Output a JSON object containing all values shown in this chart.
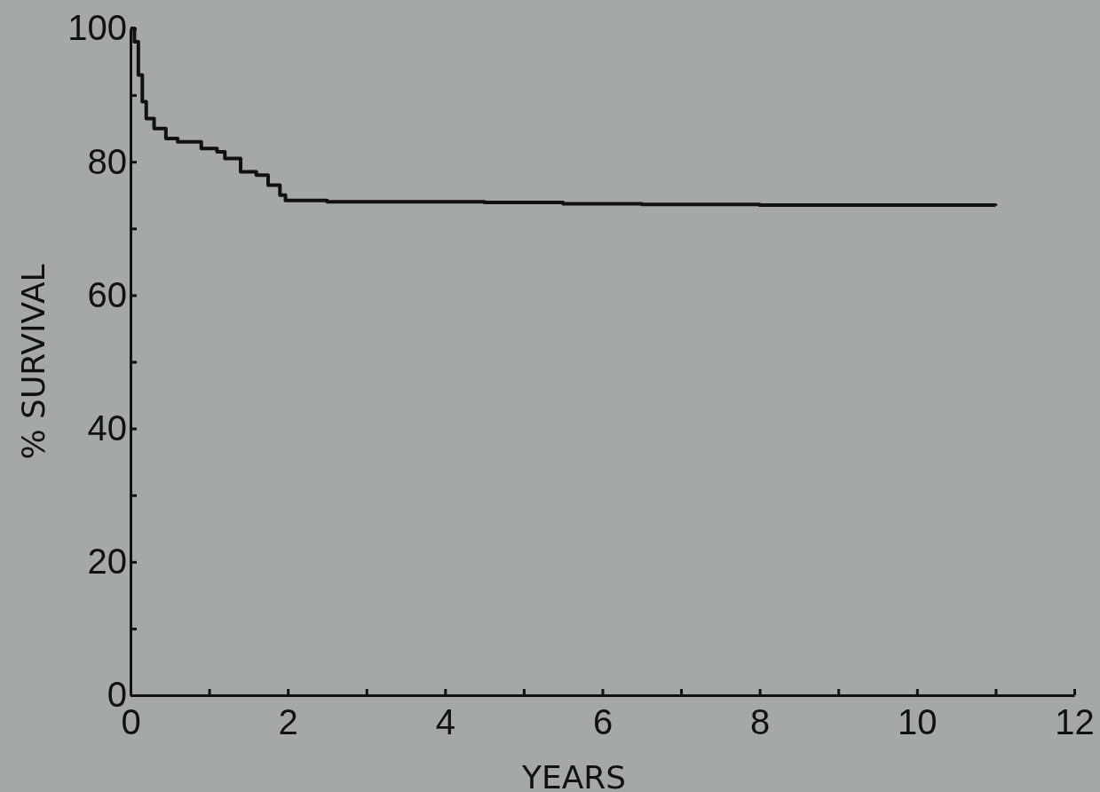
{
  "chart_data": {
    "type": "step",
    "xlabel": "YEARS",
    "ylabel": "% SURVIVAL",
    "x": [
      0,
      0.05,
      0.1,
      0.15,
      0.2,
      0.3,
      0.45,
      0.6,
      0.9,
      1.1,
      1.2,
      1.4,
      1.6,
      1.75,
      1.9,
      1.97,
      2.5,
      3.5,
      4.5,
      5.5,
      6.5,
      8,
      9.5,
      11
    ],
    "values": [
      100,
      98,
      93,
      89,
      86.5,
      85,
      83.5,
      83,
      82,
      81.5,
      80.5,
      78.5,
      78,
      76.5,
      75,
      74.2,
      74,
      74,
      73.9,
      73.7,
      73.6,
      73.5,
      73.5,
      73.4
    ],
    "color": "#111111",
    "xlim": [
      0,
      12
    ],
    "ylim": [
      0,
      100
    ],
    "xticks": [
      0,
      {
        "value": 1,
        "label": null
      },
      2,
      {
        "value": 3,
        "label": null
      },
      4,
      {
        "value": 5,
        "label": null
      },
      6,
      {
        "value": 7,
        "label": null
      },
      8,
      {
        "value": 9,
        "label": null
      },
      10,
      {
        "value": 11,
        "label": null
      },
      12
    ],
    "yticks": [
      0,
      {
        "value": 10,
        "label": null
      },
      20,
      {
        "value": 30,
        "label": null
      },
      40,
      {
        "value": 50,
        "label": null
      },
      60,
      {
        "value": 70,
        "label": null
      },
      80,
      {
        "value": 90,
        "label": null
      },
      100
    ],
    "grid": false
  }
}
